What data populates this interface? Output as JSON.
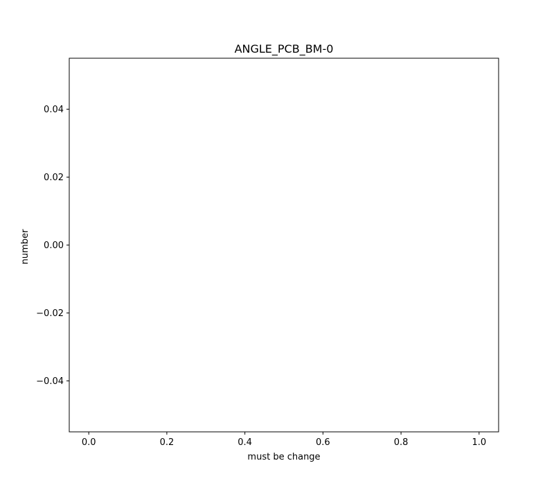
{
  "chart_data": {
    "type": "line",
    "title": "ANGLE_PCB_BM-0",
    "xlabel": "must be change",
    "ylabel": "number",
    "xlim": [
      -0.05,
      1.05
    ],
    "ylim": [
      -0.055,
      0.055
    ],
    "x_ticks": [
      0.0,
      0.2,
      0.4,
      0.6,
      0.8,
      1.0
    ],
    "x_tick_labels": [
      "0.0",
      "0.2",
      "0.4",
      "0.6",
      "0.8",
      "1.0"
    ],
    "y_ticks": [
      0.04,
      0.02,
      0.0,
      -0.02,
      -0.04
    ],
    "y_tick_labels": [
      "0.04",
      "0.02",
      "0.00",
      "−0.02",
      "−0.04"
    ],
    "series": [],
    "grid": false,
    "legend": "none"
  }
}
